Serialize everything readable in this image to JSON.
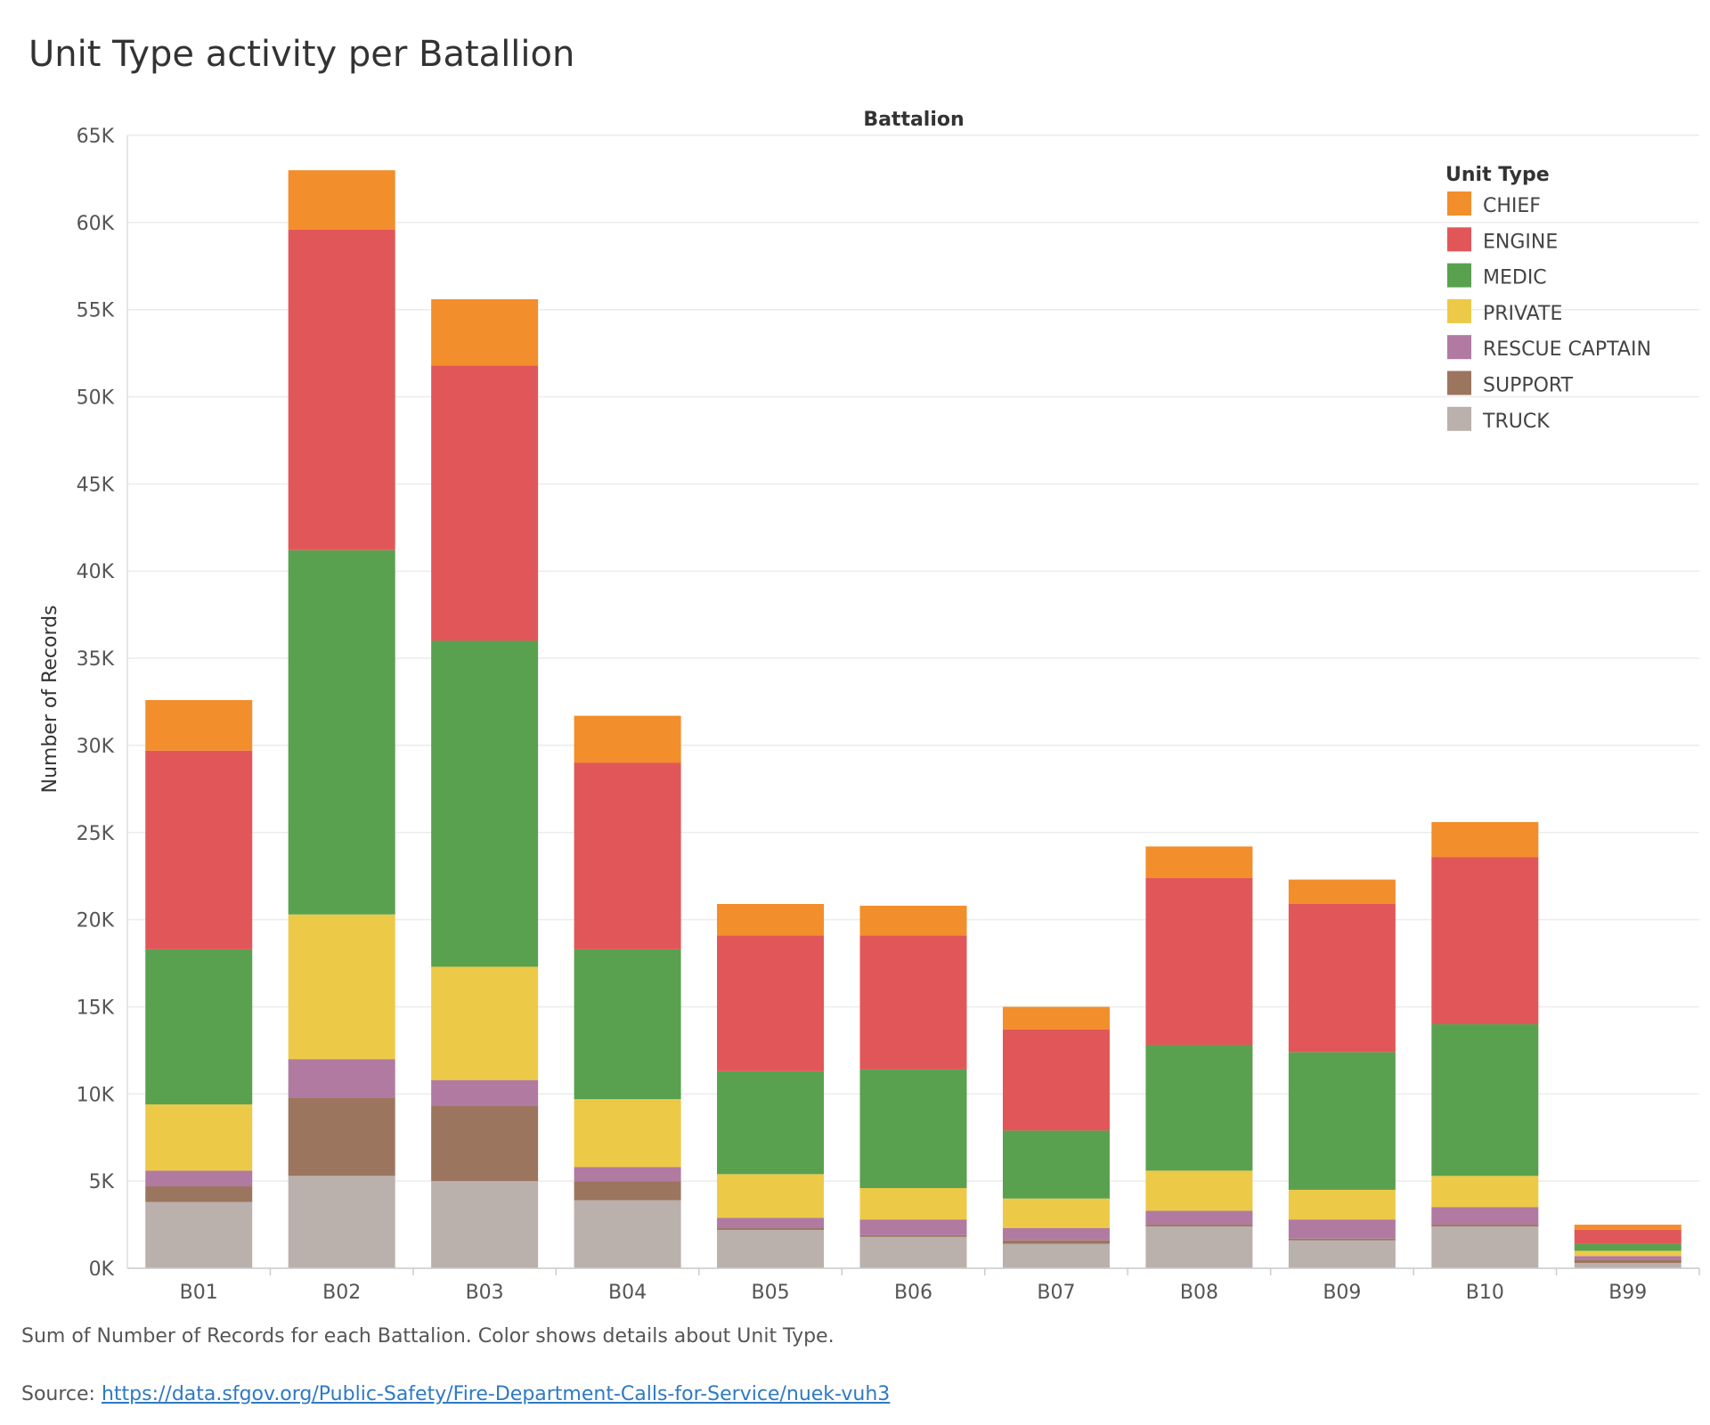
{
  "title": "Unit Type activity per Batallion",
  "caption": "Sum of Number of Records for each Battalion.  Color shows details about Unit Type.",
  "source": {
    "prefix": "Source: ",
    "link_text": "https://data.sfgov.org/Public-Safety/Fire-Department-Calls-for-Service/nuek-vuh3"
  },
  "chart_data": {
    "type": "bar",
    "stacked": true,
    "title": "Unit Type activity per Batallion",
    "xlabel": "Battalion",
    "ylabel": "Number of Records",
    "ylim": [
      0,
      65000
    ],
    "yticks": [
      0,
      5000,
      10000,
      15000,
      20000,
      25000,
      30000,
      35000,
      40000,
      45000,
      50000,
      55000,
      60000,
      65000
    ],
    "ytick_labels": [
      "0K",
      "5K",
      "10K",
      "15K",
      "20K",
      "25K",
      "30K",
      "35K",
      "40K",
      "45K",
      "50K",
      "55K",
      "60K",
      "65K"
    ],
    "grid": true,
    "legend_title": "Unit Type",
    "legend_position": "top-right",
    "categories": [
      "B01",
      "B02",
      "B03",
      "B04",
      "B05",
      "B06",
      "B07",
      "B08",
      "B09",
      "B10",
      "B99"
    ],
    "series": [
      {
        "name": "TRUCK",
        "color": "#bab0ac",
        "values": [
          3800,
          5300,
          5000,
          3900,
          2200,
          1800,
          1400,
          2400,
          1600,
          2400,
          300
        ]
      },
      {
        "name": "SUPPORT",
        "color": "#9c755f",
        "values": [
          900,
          4500,
          4300,
          1100,
          100,
          100,
          200,
          100,
          100,
          100,
          200
        ]
      },
      {
        "name": "RESCUE CAPTAIN",
        "color": "#b07aa1",
        "values": [
          900,
          2200,
          1500,
          800,
          600,
          900,
          700,
          800,
          1100,
          1000,
          200
        ]
      },
      {
        "name": "PRIVATE",
        "color": "#edc948",
        "values": [
          3800,
          8300,
          6500,
          3900,
          2500,
          1800,
          1700,
          2300,
          1700,
          1800,
          300
        ]
      },
      {
        "name": "MEDIC",
        "color": "#59a14f",
        "values": [
          8900,
          20900,
          18700,
          8600,
          5900,
          6800,
          3900,
          7200,
          7900,
          8700,
          400
        ]
      },
      {
        "name": "ENGINE",
        "color": "#e15759",
        "values": [
          11400,
          18400,
          15800,
          10700,
          7800,
          7700,
          5800,
          9600,
          8500,
          9600,
          800
        ]
      },
      {
        "name": "CHIEF",
        "color": "#f28e2b",
        "values": [
          2900,
          3400,
          3800,
          2700,
          1800,
          1700,
          1300,
          1800,
          1400,
          2000,
          300
        ]
      }
    ],
    "legend_order": [
      "CHIEF",
      "ENGINE",
      "MEDIC",
      "PRIVATE",
      "RESCUE CAPTAIN",
      "SUPPORT",
      "TRUCK"
    ]
  }
}
